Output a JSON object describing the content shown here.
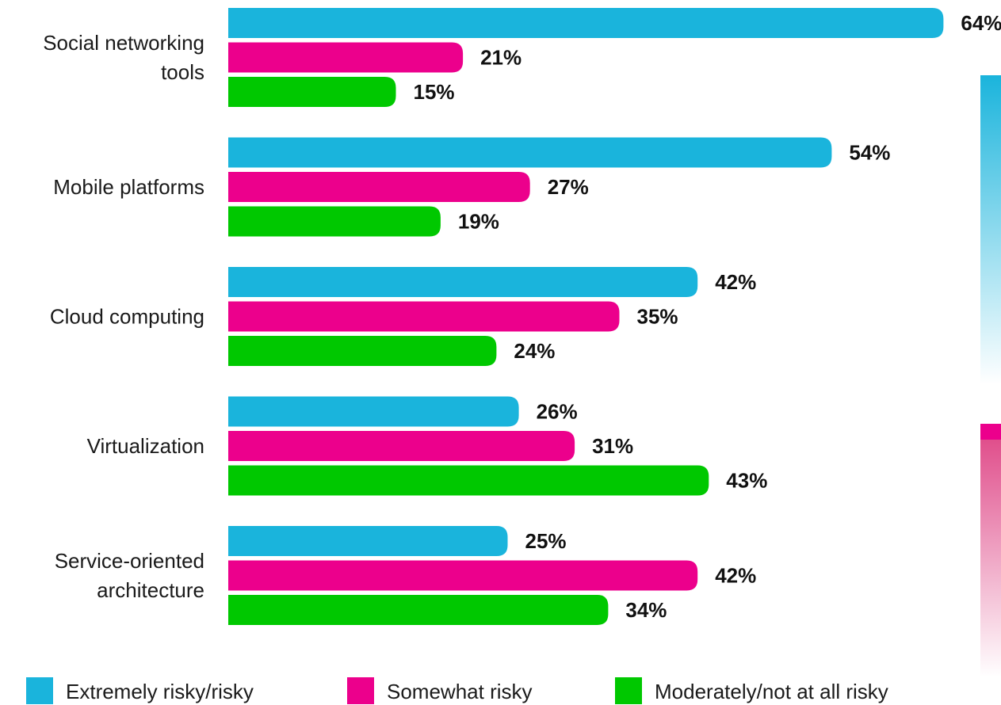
{
  "chart_data": {
    "type": "bar",
    "orientation": "horizontal",
    "categories": [
      [
        "Social networking",
        "tools"
      ],
      [
        "Mobile platforms"
      ],
      [
        "Cloud computing"
      ],
      [
        "Virtualization"
      ],
      [
        "Service-oriented",
        "architecture"
      ]
    ],
    "series": [
      {
        "name": "Extremely risky/risky",
        "color": "#1ab4dc",
        "values": [
          64,
          54,
          42,
          26,
          25
        ]
      },
      {
        "name": "Somewhat risky",
        "color": "#ec008c",
        "values": [
          21,
          27,
          35,
          31,
          42
        ]
      },
      {
        "name": "Moderately/not at all risky",
        "color": "#00c800",
        "values": [
          15,
          19,
          24,
          43,
          34
        ]
      }
    ],
    "value_suffix": "%",
    "xlim": [
      0,
      64
    ],
    "grid": false,
    "legend_position": "bottom"
  }
}
